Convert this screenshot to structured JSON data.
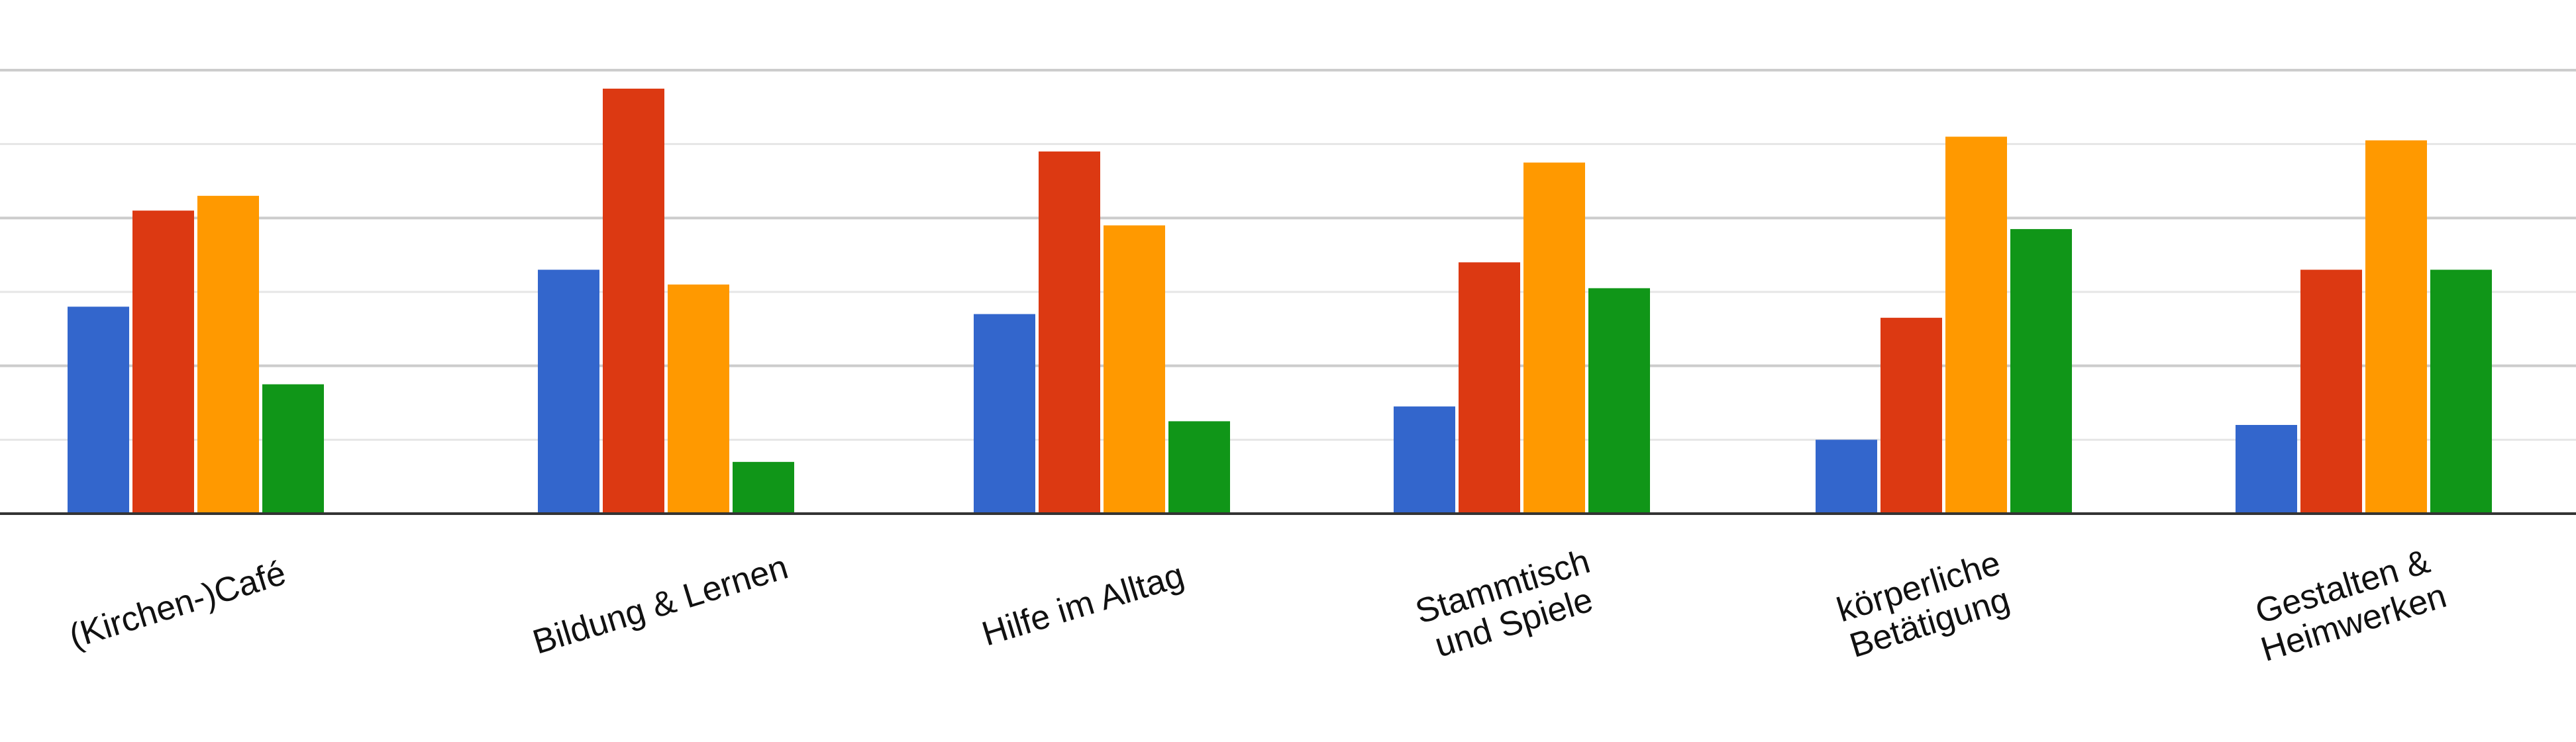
{
  "chart_data": {
    "type": "bar",
    "categories": [
      [
        "(Kirchen-)Café"
      ],
      [
        "Bildung & Lernen"
      ],
      [
        "Hilfe im Alltag"
      ],
      [
        "Stammtisch",
        "und Spiele"
      ],
      [
        "körperliche",
        "Betätigung"
      ],
      [
        "Gestalten &",
        "Heimwerken"
      ]
    ],
    "series": [
      {
        "color": "#3366cc",
        "values": [
          28,
          33,
          27,
          14.5,
          10,
          12
        ]
      },
      {
        "color": "#dc3912",
        "values": [
          41,
          57.5,
          49,
          34,
          26.5,
          33
        ]
      },
      {
        "color": "#ff9900",
        "values": [
          43,
          31,
          39,
          47.5,
          51,
          50.5
        ]
      },
      {
        "color": "#109618",
        "values": [
          17.5,
          7,
          12.5,
          30.5,
          38.5,
          33
        ]
      }
    ],
    "ylim": [
      0,
      60
    ],
    "gridlines": [
      10,
      20,
      30,
      40,
      50,
      60
    ],
    "grid": true,
    "legend": "none",
    "title": "",
    "xlabel": "",
    "ylabel": ""
  }
}
